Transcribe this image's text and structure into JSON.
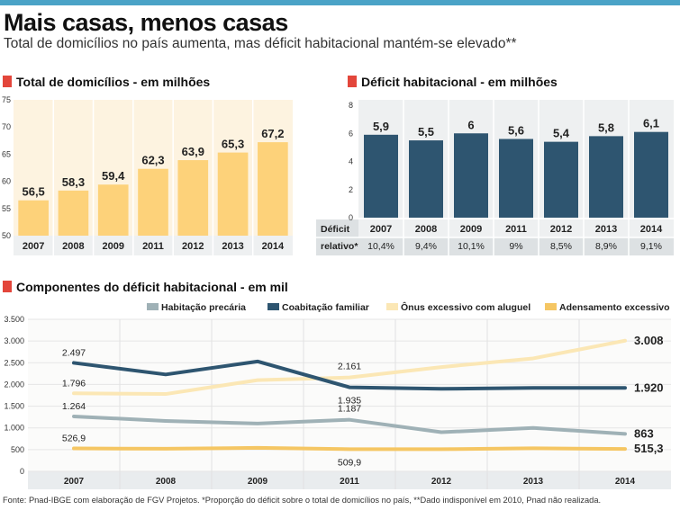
{
  "header": {
    "title": "Mais casas, menos casas",
    "subtitle": "Total de domicílios no país aumenta, mas déficit habitacional mantém-se elevado**"
  },
  "source": "Fonte: Pnad-IBGE com elaboração de FGV Projetos. *Proporção do déficit sobre o total de domicílios no país, **Dado indisponível em 2010, Pnad não realizada.",
  "colors": {
    "accent_square": "#e3463b",
    "top_bar": "#4aa3c7",
    "domicilios_bar": "#fdd27a",
    "deficit_bar": "#2e5570",
    "habitacao_precaria": "#9fb1b6",
    "coabitacao_familiar": "#2e5570",
    "onus_aluguel": "#fbe7b5",
    "adensamento": "#f5c663"
  },
  "chart_data": [
    {
      "type": "bar",
      "title": "Total de domicílios - em milhões",
      "categories": [
        "2007",
        "2008",
        "2009",
        "2011",
        "2012",
        "2013",
        "2014"
      ],
      "values": [
        56.5,
        58.3,
        59.4,
        62.3,
        63.9,
        65.3,
        67.2
      ],
      "value_labels": [
        "56,5",
        "58,3",
        "59,4",
        "62,3",
        "63,9",
        "65,3",
        "67,2"
      ],
      "ylim": [
        50,
        75
      ],
      "yticks": [
        50,
        55,
        60,
        65,
        70,
        75
      ],
      "grid": "vertical separators"
    },
    {
      "type": "bar",
      "title": "Déficit habitacional - em milhões",
      "categories": [
        "2007",
        "2008",
        "2009",
        "2011",
        "2012",
        "2013",
        "2014"
      ],
      "values": [
        5.9,
        5.5,
        6,
        5.6,
        5.4,
        5.8,
        6.1
      ],
      "value_labels": [
        "5,9",
        "5,5",
        "6",
        "5,6",
        "5,4",
        "5,8",
        "6,1"
      ],
      "ylim": [
        0,
        8
      ],
      "yticks": [
        0,
        2,
        4,
        6,
        8
      ],
      "table_label_line1": "Déficit",
      "table_label_line2": "relativo*",
      "table_values": [
        "10,4%",
        "9,4%",
        "10,1%",
        "9%",
        "8,5%",
        "8,9%",
        "9,1%"
      ]
    },
    {
      "type": "line",
      "title": "Componentes do déficit habitacional - em mil",
      "x": [
        "2007",
        "2008",
        "2009",
        "2011",
        "2012",
        "2013",
        "2014"
      ],
      "ylim": [
        0,
        3500
      ],
      "yticks": [
        0,
        500,
        1000,
        1500,
        2000,
        2500,
        3000,
        3500
      ],
      "ytick_labels": [
        "0",
        "500",
        "1.000",
        "1.500",
        "2.000",
        "2.500",
        "3.000",
        "3.500"
      ],
      "legend_placement": "top",
      "series": [
        {
          "name": "Habitação precária",
          "values": [
            1264,
            1160,
            1100,
            1187,
            900,
            1000,
            863
          ]
        },
        {
          "name": "Coabitação familiar",
          "values": [
            2497,
            2230,
            2530,
            1935,
            1900,
            1920,
            1920
          ]
        },
        {
          "name": "Ônus excessivo com aluguel",
          "values": [
            1796,
            1780,
            2100,
            2161,
            2400,
            2600,
            3008
          ]
        },
        {
          "name": "Adensamento excessivo",
          "values": [
            526.9,
            520,
            540,
            509.9,
            510,
            530,
            515.3
          ]
        }
      ],
      "annotations": [
        {
          "text": "2.497",
          "series": 1,
          "index": 0
        },
        {
          "text": "1.796",
          "series": 2,
          "index": 0
        },
        {
          "text": "1.264",
          "series": 0,
          "index": 0
        },
        {
          "text": "526,9",
          "series": 3,
          "index": 0
        },
        {
          "text": "2.161",
          "series": 2,
          "index": 3
        },
        {
          "text": "1.935",
          "series": 1,
          "index": 3
        },
        {
          "text": "1.187",
          "series": 0,
          "index": 3
        },
        {
          "text": "509,9",
          "series": 3,
          "index": 3
        },
        {
          "text": "3.008",
          "series": 2,
          "index": 6
        },
        {
          "text": "1.920",
          "series": 1,
          "index": 6
        },
        {
          "text": "863",
          "series": 0,
          "index": 6
        },
        {
          "text": "515,3",
          "series": 3,
          "index": 6
        }
      ]
    }
  ]
}
